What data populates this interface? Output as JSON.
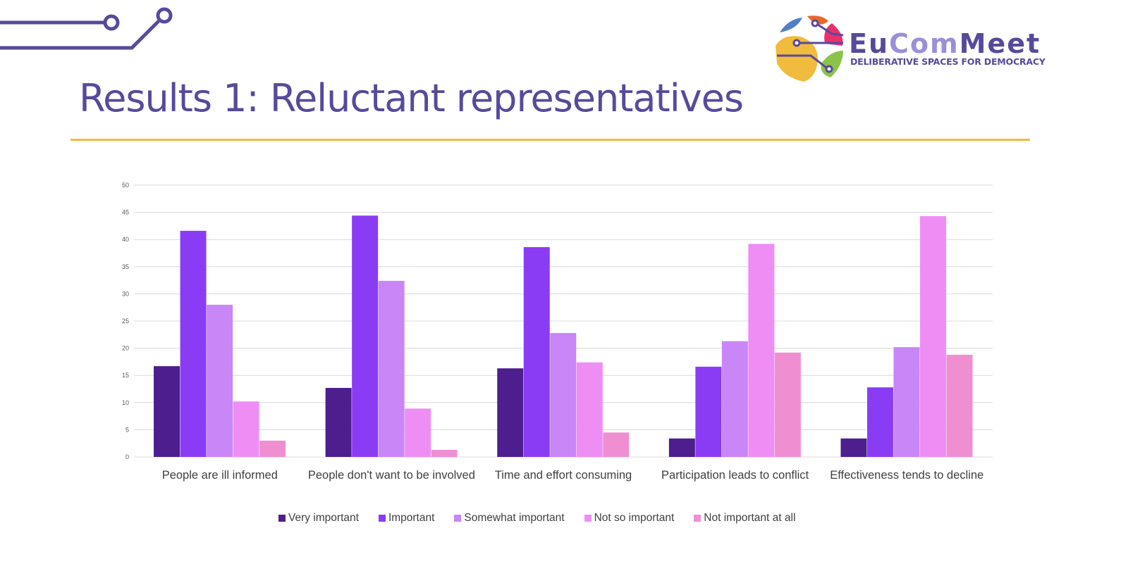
{
  "slide": {
    "title": "Results 1: Reluctant representatives",
    "logo": {
      "name_part1": "Eu",
      "name_part2": "Com",
      "name_part3": "Meet",
      "tagline": "DELIBERATIVE SPACES FOR DEMOCRACY"
    }
  },
  "colors": {
    "accent": "#574a9b",
    "rule": "#f1bb3d"
  },
  "chart_data": {
    "type": "bar",
    "title": "",
    "xlabel": "",
    "ylabel": "",
    "ylim": [
      0,
      50
    ],
    "yticks": [
      0,
      5,
      10,
      15,
      20,
      25,
      30,
      35,
      40,
      45,
      50
    ],
    "grid": true,
    "legend_position": "bottom",
    "categories": [
      "People are ill informed",
      "People don't want to be involved",
      "Time and effort consuming",
      "Participation leads to conflict",
      "Effectiveness tends to decline"
    ],
    "series": [
      {
        "name": "Very important",
        "color": "#4d1e8e",
        "values": [
          16.7,
          12.7,
          16.3,
          3.4,
          3.4
        ]
      },
      {
        "name": "Important",
        "color": "#8a3cf5",
        "values": [
          41.6,
          44.4,
          38.6,
          16.6,
          12.8
        ]
      },
      {
        "name": "Somewhat important",
        "color": "#c986f7",
        "values": [
          28.0,
          32.4,
          22.8,
          21.3,
          20.2
        ]
      },
      {
        "name": "Not so important",
        "color": "#ee8ef5",
        "values": [
          10.2,
          8.9,
          17.4,
          39.2,
          44.3
        ]
      },
      {
        "name": "Not important at all",
        "color": "#ef8fd2",
        "values": [
          3.0,
          1.3,
          4.5,
          19.2,
          18.8
        ]
      }
    ]
  }
}
